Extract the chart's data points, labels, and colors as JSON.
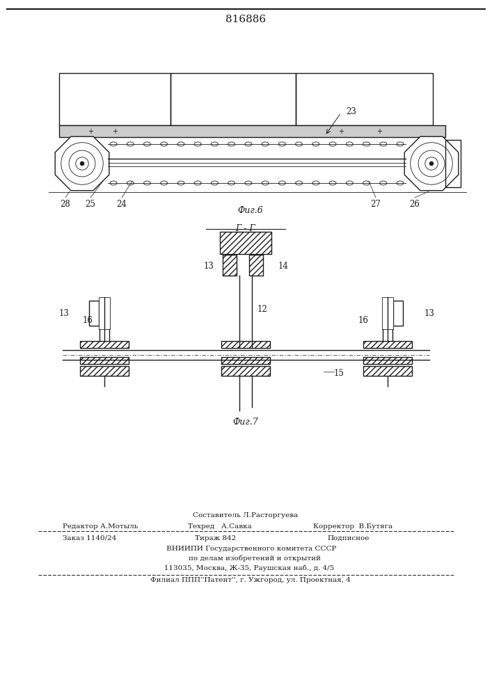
{
  "patent_number": "816886",
  "fig6_caption": "Фиг.6",
  "fig7_caption": "Фиг.7",
  "section_label": "Г - Г",
  "line_color": "#1a1a1a",
  "footer": {
    "sostavitel": "Составитель Л.Расторгуева",
    "redaktor": "Редактор А.Мотыль",
    "tehred": "Техред   А.Савка",
    "korrektor": "Корректор  В.Бутяга",
    "zakaz": "Заказ 1140/24",
    "tirazh": "Тираж 842",
    "podpisnoe": "Подписное",
    "vniip1": "     ВНИИПИ Государственного комитета СССР",
    "vniip2": "        по делам изобретений и открытий",
    "addr": "   113035, Москва, Ж-35, Раушская наб., д. 4/5",
    "filial": "    Филиал ППП''Патент'', г. Ужгород, ул. Проектная, 4"
  }
}
